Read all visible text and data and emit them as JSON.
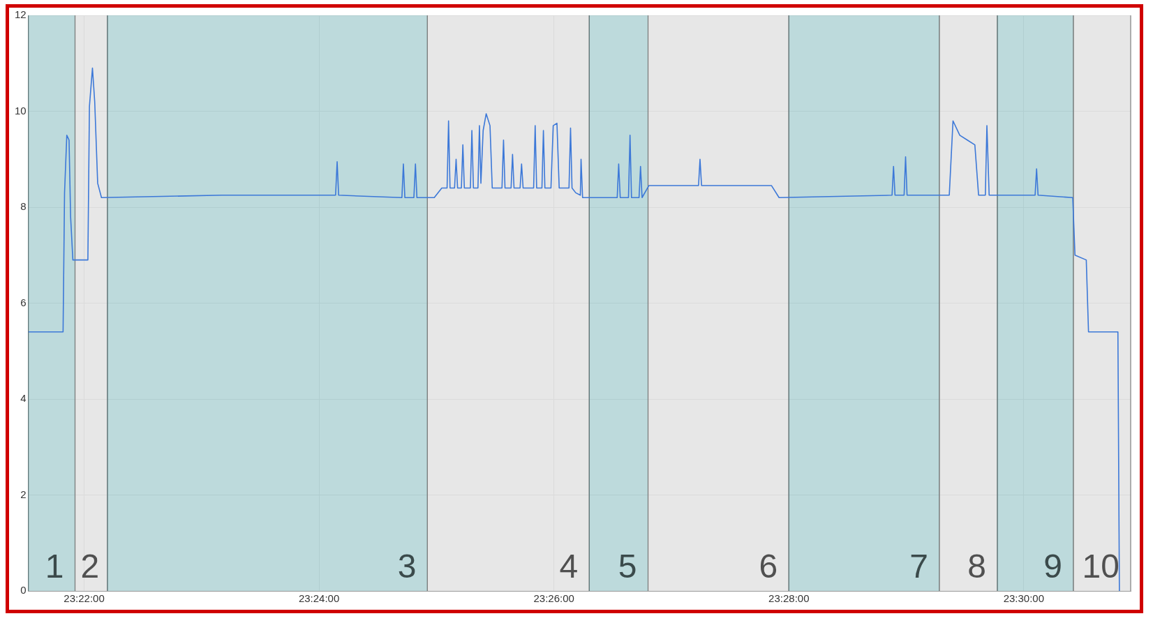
{
  "chart_data": {
    "type": "line",
    "x": [
      23.35876,
      23.36368,
      23.36389,
      23.36421,
      23.36453,
      23.36475,
      23.36507,
      23.3672,
      23.36742,
      23.36785,
      23.36817,
      23.36859,
      23.36913,
      23.38622,
      23.40235,
      23.40257,
      23.40278,
      23.41176,
      23.41197,
      23.41218,
      23.41346,
      23.41368,
      23.41389,
      23.41635,
      23.41742,
      23.41817,
      23.41838,
      23.41859,
      23.41923,
      23.41945,
      23.41966,
      23.4202,
      23.42041,
      23.42062,
      23.42148,
      23.42169,
      23.42191,
      23.42255,
      23.42276,
      23.42297,
      23.42329,
      23.42372,
      23.42426,
      23.42458,
      23.42596,
      23.42618,
      23.42639,
      23.42725,
      23.42746,
      23.42767,
      23.42853,
      23.42874,
      23.42896,
      23.43045,
      23.43067,
      23.43088,
      23.43163,
      23.43184,
      23.43205,
      23.43291,
      23.43323,
      23.43376,
      23.43408,
      23.43547,
      23.43569,
      23.4359,
      23.43643,
      23.43708,
      23.43718,
      23.4374,
      23.44231,
      23.44252,
      23.44274,
      23.44391,
      23.44413,
      23.44434,
      23.44541,
      23.44562,
      23.44584,
      23.4468,
      23.45385,
      23.45406,
      23.45428,
      23.46421,
      23.46528,
      23.48131,
      23.48152,
      23.48173,
      23.48302,
      23.48323,
      23.48344,
      23.48943,
      23.48996,
      23.49092,
      23.49199,
      23.49306,
      23.49359,
      23.49455,
      23.49477,
      23.49509,
      23.50161,
      23.50182,
      23.50203,
      23.50695,
      23.50727,
      23.50887,
      23.50919,
      23.51336,
      23.51357
    ],
    "series": [
      {
        "color": "#3c78d8",
        "values": [
          5.4,
          5.4,
          8.3,
          9.5,
          9.4,
          7.8,
          6.9,
          6.9,
          10.1,
          10.9,
          10.2,
          8.5,
          8.2,
          8.25,
          8.25,
          8.95,
          8.25,
          8.2,
          8.9,
          8.2,
          8.2,
          8.9,
          8.2,
          8.2,
          8.4,
          8.4,
          9.8,
          8.4,
          8.4,
          9.0,
          8.4,
          8.4,
          9.3,
          8.4,
          8.4,
          9.6,
          8.4,
          8.4,
          9.7,
          8.5,
          9.6,
          9.95,
          9.7,
          8.4,
          8.4,
          9.4,
          8.4,
          8.4,
          9.1,
          8.4,
          8.4,
          8.9,
          8.4,
          8.4,
          9.7,
          8.4,
          8.4,
          9.6,
          8.4,
          8.4,
          9.7,
          9.75,
          8.4,
          8.4,
          9.65,
          8.4,
          8.3,
          8.25,
          9.0,
          8.2,
          8.2,
          8.9,
          8.2,
          8.2,
          9.5,
          8.2,
          8.2,
          8.85,
          8.2,
          8.45,
          8.45,
          9.0,
          8.45,
          8.45,
          8.2,
          8.25,
          8.85,
          8.25,
          8.25,
          9.05,
          8.25,
          8.25,
          9.8,
          9.5,
          9.4,
          9.3,
          8.25,
          8.25,
          9.7,
          8.25,
          8.25,
          8.8,
          8.25,
          8.2,
          7.0,
          6.9,
          5.4,
          5.4,
          0
        ]
      }
    ],
    "xlim": [
      23.35876,
      23.51517
    ],
    "xticks": [
      {
        "value": 23.36667,
        "label": "23:22:00"
      },
      {
        "value": 23.4,
        "label": "23:24:00"
      },
      {
        "value": 23.43333,
        "label": "23:26:00"
      },
      {
        "value": 23.46667,
        "label": "23:28:00"
      },
      {
        "value": 23.5,
        "label": "23:30:00"
      }
    ],
    "ylim": [
      0,
      12
    ],
    "yticks": [
      0,
      2,
      4,
      6,
      8,
      10,
      12
    ],
    "grid": true,
    "legend": false,
    "marker": "none",
    "line_style": "solid",
    "bands": [
      {
        "axis": "x",
        "from": 23.35876,
        "to": 23.36538,
        "label": "1",
        "color": "#a9d3d6"
      },
      {
        "axis": "x",
        "from": 23.36538,
        "to": 23.36998,
        "label": "2",
        "color": "#e5e5e5"
      },
      {
        "axis": "x",
        "from": 23.36998,
        "to": 23.41538,
        "label": "3",
        "color": "#a9d3d6"
      },
      {
        "axis": "x",
        "from": 23.41538,
        "to": 23.43835,
        "label": "4",
        "color": "#e5e5e5"
      },
      {
        "axis": "x",
        "from": 23.43835,
        "to": 23.44669,
        "label": "5",
        "color": "#a9d3d6"
      },
      {
        "axis": "x",
        "from": 23.44669,
        "to": 23.46667,
        "label": "6",
        "color": "#e5e5e5"
      },
      {
        "axis": "x",
        "from": 23.46667,
        "to": 23.48803,
        "label": "7",
        "color": "#a9d3d6"
      },
      {
        "axis": "x",
        "from": 23.48803,
        "to": 23.49626,
        "label": "8",
        "color": "#e5e5e5"
      },
      {
        "axis": "x",
        "from": 23.49626,
        "to": 23.50705,
        "label": "9",
        "color": "#a9d3d6"
      },
      {
        "axis": "x",
        "from": 23.50705,
        "to": 23.51517,
        "label": "10",
        "color": "#e5e5e5"
      }
    ]
  }
}
